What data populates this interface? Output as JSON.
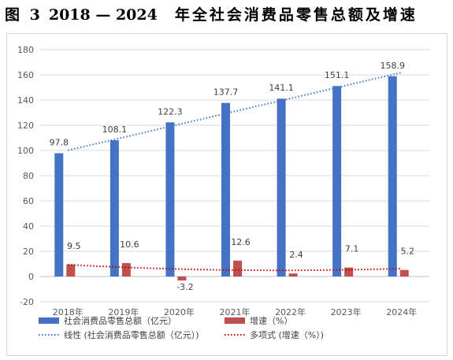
{
  "figure": {
    "label": "图 3",
    "number": "2018 — 2024",
    "title": "年全社会消费品零售总额及增速"
  },
  "chart_data": {
    "type": "bar",
    "categories": [
      "2018年",
      "2019年",
      "2020年",
      "2021年",
      "2022年",
      "2023年",
      "2024年"
    ],
    "series": [
      {
        "name": "社会消费品零售总额（亿元）",
        "values": [
          97.8,
          108.1,
          122.3,
          137.7,
          141.1,
          151.1,
          158.9
        ],
        "color": "#4472C4"
      },
      {
        "name": "增速（%）",
        "values": [
          9.5,
          10.6,
          -3.2,
          12.6,
          2.4,
          7.1,
          5.2
        ],
        "color": "#C0504D"
      }
    ],
    "data_labels": [
      [
        "97.8",
        "108.1",
        "122.3",
        "137.7",
        "141.1",
        "151.1",
        "158.9"
      ],
      [
        "9.5",
        "10.6",
        "-3.2",
        "12.6",
        "2.4",
        "7.1",
        "5.2"
      ]
    ],
    "trendlines": [
      {
        "name": "线性 (社会消费品零售总额（亿元）)",
        "kind": "linear",
        "series_index": 0,
        "color": "#4472C4"
      },
      {
        "name": "多项式 (增速（%）)",
        "kind": "polynomial",
        "series_index": 1,
        "color": "#C00000"
      }
    ],
    "y_ticks": [
      "180",
      "160",
      "140",
      "120",
      "100",
      "80",
      "60",
      "40",
      "20",
      "0",
      "-20"
    ],
    "ylim": [
      -20,
      180
    ],
    "grid": true,
    "legend_position": "bottom"
  }
}
